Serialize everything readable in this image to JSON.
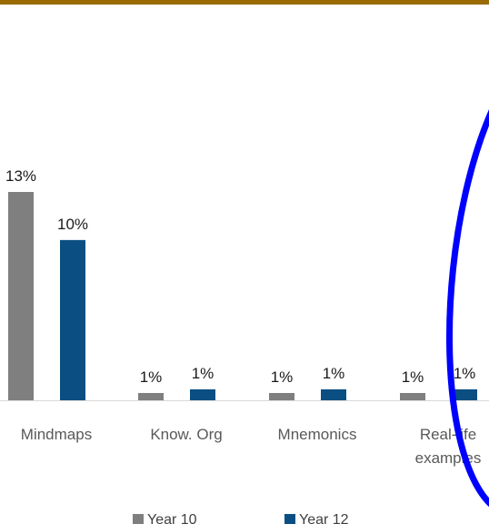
{
  "page": {
    "accent_bar_color": "#9a6a00",
    "annotation_color": "#0000ff"
  },
  "chart_data": {
    "type": "bar",
    "title": "",
    "xlabel": "",
    "ylabel": "",
    "categories": [
      [
        "Mindmaps"
      ],
      [
        "Know. Org"
      ],
      [
        "Mnemonics"
      ],
      [
        "Real-life",
        "examples"
      ]
    ],
    "series": [
      {
        "name": "Year 10",
        "color": "#7f7f7f",
        "values": [
          13,
          1,
          1,
          1
        ],
        "labels": [
          "13%",
          "1%",
          "1%",
          "1%"
        ]
      },
      {
        "name": "Year 12",
        "color": "#0b4f82",
        "values": [
          10,
          1,
          1,
          1
        ],
        "labels": [
          "10%",
          "1%",
          "1%",
          "1%"
        ]
      }
    ],
    "legend": "bottom",
    "grid": false
  }
}
